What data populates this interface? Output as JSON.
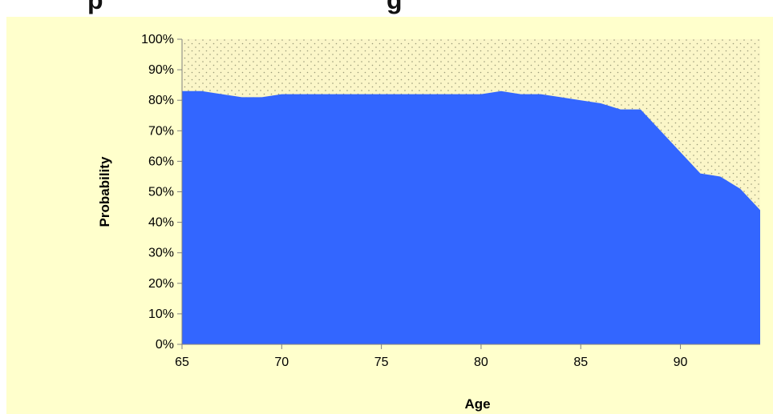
{
  "header": {
    "title_fragment": "                    p                                    g"
  },
  "colors": {
    "panel_background": "#ffffcc",
    "plot_background": "#fbf6c8",
    "dot_pattern": "#9a9a78",
    "series_fill": "#3366ff",
    "axis": "#808080"
  },
  "chart_data": {
    "type": "area",
    "title": "",
    "xlabel": "Age",
    "ylabel": "Probability",
    "xlim": [
      65,
      94
    ],
    "ylim": [
      0,
      100
    ],
    "x_ticks": [
      65,
      70,
      75,
      80,
      85,
      90
    ],
    "x_tick_labels": [
      "65",
      "70",
      "75",
      "80",
      "85",
      "90"
    ],
    "y_ticks": [
      0,
      10,
      20,
      30,
      40,
      50,
      60,
      70,
      80,
      90,
      100
    ],
    "y_tick_labels": [
      "0%",
      "10%",
      "20%",
      "30%",
      "40%",
      "50%",
      "60%",
      "70%",
      "80%",
      "90%",
      "100%"
    ],
    "grid": false,
    "background_pattern": "dotted",
    "series": [
      {
        "x": [
          65,
          66,
          67,
          68,
          69,
          70,
          71,
          72,
          73,
          74,
          75,
          76,
          77,
          78,
          79,
          80,
          81,
          82,
          83,
          84,
          85,
          86,
          87,
          88,
          89,
          90,
          91,
          92,
          93,
          94
        ],
        "values": [
          83,
          83,
          82,
          81,
          81,
          82,
          82,
          82,
          82,
          82,
          82,
          82,
          82,
          82,
          82,
          82,
          83,
          82,
          82,
          81,
          80,
          79,
          77,
          77,
          70,
          63,
          56,
          55,
          51,
          44
        ]
      }
    ]
  }
}
